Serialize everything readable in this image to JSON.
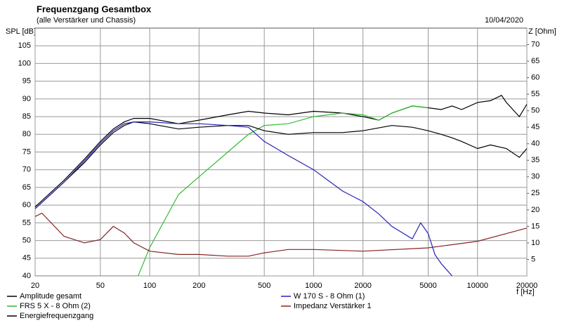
{
  "chart_data": {
    "type": "line",
    "title": "Frequenzgang Gesamtbox",
    "subtitle": "(alle Verstärker und Chassis)",
    "date": "10/04/2020",
    "y_label": "SPL [dB]",
    "y2_label": "Z [Ohm]",
    "x_label": "f [Hz]",
    "x_scale": "log",
    "grid": true,
    "xlim": [
      20,
      20000
    ],
    "xticks": [
      20,
      50,
      100,
      200,
      500,
      1000,
      2000,
      5000,
      10000,
      20000
    ],
    "ylim": [
      40,
      110
    ],
    "yticks": [
      40,
      45,
      50,
      55,
      60,
      65,
      70,
      75,
      80,
      85,
      90,
      95,
      100,
      105
    ],
    "y2lim": [
      0,
      75
    ],
    "y2ticks": [
      5,
      10,
      15,
      20,
      25,
      30,
      35,
      40,
      45,
      50,
      55,
      60,
      65,
      70
    ],
    "series": [
      {
        "name": "Amplitude gesamt",
        "color": "#000000",
        "x": [
          20,
          30,
          40,
          50,
          60,
          70,
          80,
          100,
          150,
          200,
          300,
          400,
          500,
          700,
          1000,
          1500,
          2000,
          2500,
          3000,
          4000,
          5000,
          6000,
          7000,
          8000,
          10000,
          12000,
          14000,
          15000,
          18000,
          20000
        ],
        "values": [
          59.5,
          67,
          73,
          78,
          81.5,
          83.5,
          84.5,
          84.5,
          83,
          84,
          85.5,
          86.5,
          86,
          85.5,
          86.5,
          86,
          85,
          84,
          86,
          88,
          87.5,
          87,
          88,
          87,
          89,
          89.5,
          91,
          89,
          85,
          88.5
        ]
      },
      {
        "name": "FRS 5 X - 8 Ohm (2)",
        "color": "#33bb33",
        "x": [
          20,
          85,
          100,
          150,
          200,
          300,
          400,
          500,
          700,
          1000,
          1500,
          2000,
          2500,
          3000,
          4000,
          5000
        ],
        "values": [
          40,
          40,
          48,
          63,
          68,
          75,
          80,
          82.5,
          83,
          85,
          86,
          85.5,
          84,
          86,
          88,
          87.5
        ]
      },
      {
        "name": "Energiefrequenzgang",
        "color": "#000000",
        "x": [
          20,
          30,
          40,
          50,
          60,
          70,
          80,
          100,
          150,
          200,
          300,
          400,
          500,
          700,
          1000,
          1500,
          2000,
          3000,
          4000,
          5000,
          6000,
          7000,
          8000,
          10000,
          12000,
          15000,
          18000,
          20000
        ],
        "values": [
          59,
          66.5,
          72,
          77,
          80.5,
          82.5,
          83.5,
          83,
          81.5,
          82,
          82.5,
          82.5,
          81,
          80,
          80.5,
          80.5,
          81,
          82.5,
          82,
          81,
          80,
          79,
          78,
          76,
          77,
          76,
          73.5,
          76
        ]
      },
      {
        "name": "W 170 S - 8 Ohm (1)",
        "color": "#2222bb",
        "x": [
          20,
          30,
          40,
          50,
          60,
          70,
          80,
          100,
          150,
          200,
          300,
          400,
          500,
          700,
          1000,
          1500,
          2000,
          2500,
          3000,
          4000,
          4500,
          5000,
          5500,
          6000,
          7000
        ],
        "values": [
          59,
          66.5,
          72.5,
          77.5,
          81,
          83,
          83.5,
          83.5,
          83,
          83,
          82.5,
          82,
          78,
          74,
          70,
          64,
          61,
          57.5,
          54,
          50.5,
          55,
          52,
          46,
          43.5,
          40
        ]
      },
      {
        "name": "Impedanz Verstärker 1",
        "color": "#882222",
        "axis": "y2",
        "x": [
          20,
          22,
          30,
          40,
          50,
          60,
          70,
          80,
          100,
          150,
          200,
          300,
          400,
          500,
          700,
          1000,
          2000,
          5000,
          10000,
          20000
        ],
        "values": [
          18,
          19,
          12,
          10,
          11,
          15,
          13,
          10,
          7.5,
          6.5,
          6.5,
          6,
          6,
          7,
          8,
          8,
          7.5,
          8.5,
          10.5,
          14.5
        ]
      }
    ]
  }
}
